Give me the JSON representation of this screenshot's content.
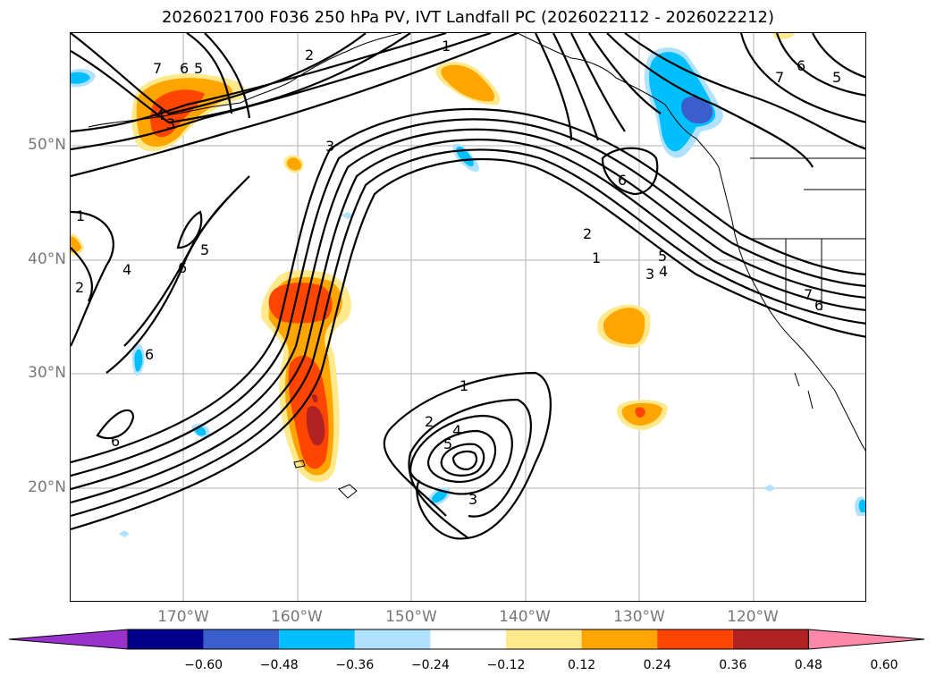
{
  "title": "2026021700 F036 250 hPa PV, IVT Landfall PC (2026022112 - 2026022212)",
  "lat_labels": [
    "50°N",
    "40°N",
    "30°N",
    "20°N"
  ],
  "lon_labels": [
    "170°W",
    "160°W",
    "150°W",
    "140°W",
    "130°W",
    "120°W"
  ],
  "colorbar": {
    "ticks": [
      "−0.60",
      "−0.48",
      "−0.36",
      "−0.24",
      "−0.12",
      "0.12",
      "0.24",
      "0.36",
      "0.48",
      "0.60"
    ],
    "colors": [
      "#9932cc",
      "#00008b",
      "#3a5fcd",
      "#00bfff",
      "#b0e2ff",
      "#ffffff",
      "#ffe98c",
      "#ffa500",
      "#ff4500",
      "#b22222",
      "#ff88aa"
    ]
  },
  "contour_labels": [
    "1",
    "2",
    "3",
    "4",
    "5",
    "6",
    "7"
  ],
  "colors": {
    "axis_label": "#777777",
    "grid": "#b0b0b0"
  }
}
